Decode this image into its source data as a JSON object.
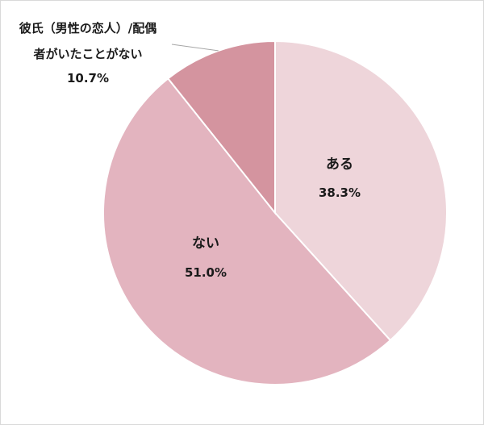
{
  "chart_data": {
    "type": "pie",
    "title": "",
    "slices": [
      {
        "label": "ある",
        "value": 38.3,
        "value_label": "38.3%",
        "color": "#eed5da"
      },
      {
        "label": "ない",
        "value": 51.0,
        "value_label": "51.0%",
        "color": "#e3b4bf"
      },
      {
        "label_lines": [
          "彼氏（男性の恋人）/配偶",
          "者がいたことがない"
        ],
        "label": "彼氏（男性の恋人）/配偶者がいたことがない",
        "value": 10.7,
        "value_label": "10.7%",
        "color": "#d4949f"
      }
    ],
    "start_angle_deg": 0,
    "direction": "clockwise",
    "slice_border_color": "#ffffff",
    "leader_line_color": "#a6a6a6",
    "legend": "none"
  }
}
